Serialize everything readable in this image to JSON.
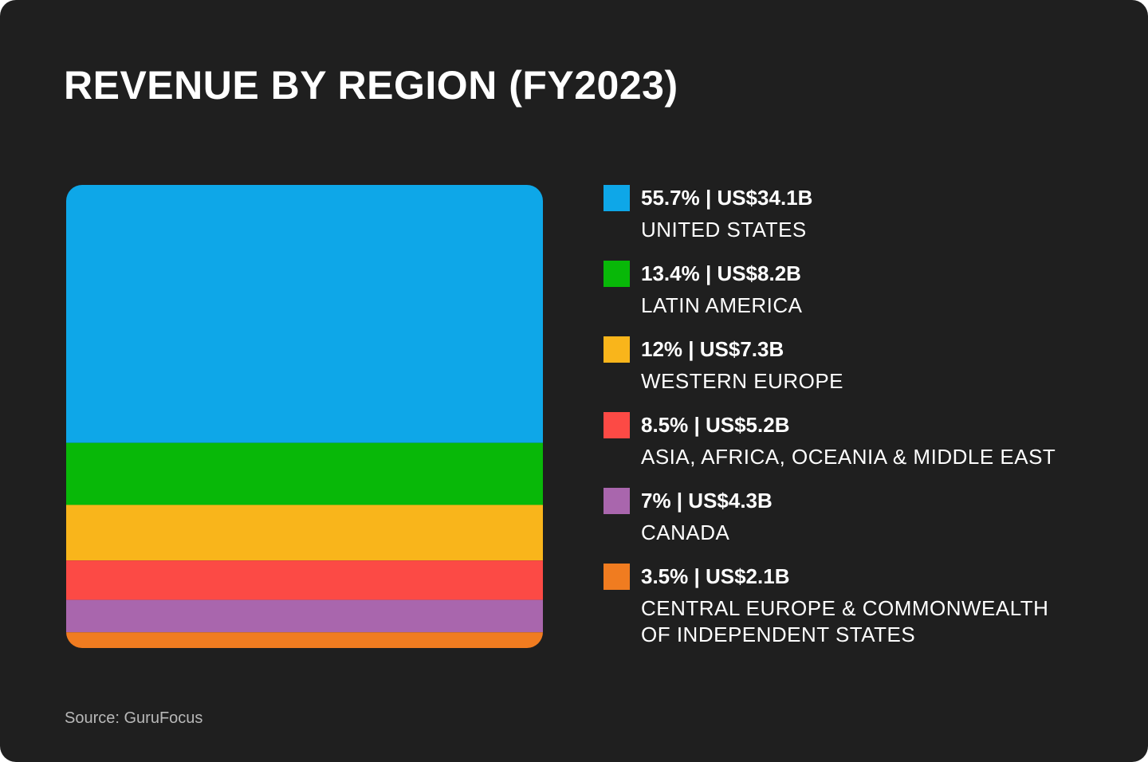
{
  "chart_data": {
    "type": "stacked_bar",
    "title": "REVENUE BY REGION (FY2023)",
    "source": "Source: GuruFocus",
    "categories": [
      "UNITED STATES",
      "LATIN AMERICA",
      "WESTERN EUROPE",
      "ASIA, AFRICA, OCEANIA & MIDDLE EAST",
      "CANADA",
      "CENTRAL EUROPE & COMMONWEALTH OF INDEPENDENT STATES"
    ],
    "values": [
      55.7,
      13.4,
      12,
      8.5,
      7,
      3.5
    ],
    "value_labels": [
      "55.7% | US$34.1B",
      "13.4% | US$8.2B",
      "12% | US$7.3B",
      "8.5% | US$5.2B",
      "7% | US$4.3B",
      "3.5% | US$2.1B"
    ],
    "colors": [
      "#0ea7e8",
      "#08b808",
      "#f9b51b",
      "#fc4a45",
      "#a966ad",
      "#f07c20"
    ],
    "ylim": [
      0,
      100
    ],
    "legend": "right"
  }
}
